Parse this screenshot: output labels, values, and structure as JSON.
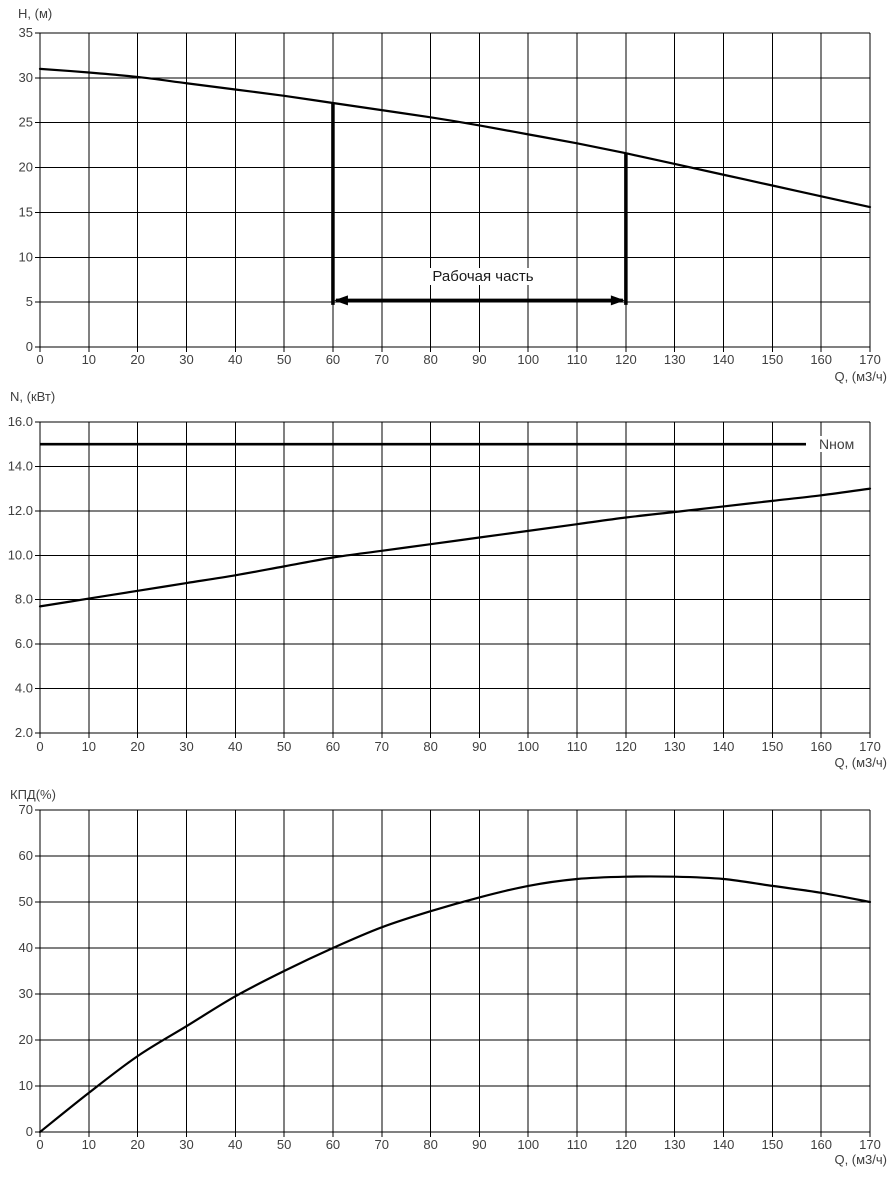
{
  "page": {
    "background": "#ffffff",
    "colors": {
      "curve": "#000000",
      "grid": "#000000",
      "tick_text": "#3f3f3f",
      "annotation": "#000000"
    }
  },
  "chart_data": [
    {
      "id": "head-curve",
      "type": "line",
      "title": "",
      "ylabel": "H, (м)",
      "xlabel": "Q, (м3/ч)",
      "xlim": [
        0,
        170
      ],
      "xtick_step": 10,
      "ylim": [
        0,
        35
      ],
      "ytick_step": 5,
      "y_decimals": 0,
      "grid": true,
      "legend": "none",
      "x": [
        0,
        10,
        20,
        30,
        40,
        50,
        60,
        70,
        80,
        90,
        100,
        110,
        120,
        130,
        140,
        150,
        160,
        170
      ],
      "series": [
        {
          "name": "H",
          "values": [
            31.0,
            30.6,
            30.1,
            29.4,
            28.7,
            28.0,
            27.2,
            26.4,
            25.6,
            24.7,
            23.7,
            22.7,
            21.6,
            20.4,
            19.2,
            18.0,
            16.8,
            15.6
          ]
        }
      ],
      "annotation": {
        "label": "Рабочая часть",
        "x_from": 60,
        "x_to": 120,
        "arrow_y": 5.2,
        "bracket_bottom_y": 4.7
      }
    },
    {
      "id": "power-curve",
      "type": "line",
      "title": "",
      "ylabel": "N, (кВт)",
      "xlabel": "Q, (м3/ч)",
      "xlim": [
        0,
        170
      ],
      "xtick_step": 10,
      "ylim": [
        2,
        16
      ],
      "ytick_step": 2,
      "y_decimals": 1,
      "grid": true,
      "legend": "none",
      "x": [
        0,
        10,
        20,
        30,
        40,
        50,
        60,
        70,
        80,
        90,
        100,
        110,
        120,
        130,
        140,
        150,
        160,
        170
      ],
      "series": [
        {
          "name": "N",
          "values": [
            7.7,
            8.05,
            8.4,
            8.75,
            9.1,
            9.5,
            9.9,
            10.2,
            10.5,
            10.8,
            11.1,
            11.4,
            11.7,
            11.95,
            12.2,
            12.45,
            12.7,
            13.0
          ]
        }
      ],
      "ref_line": {
        "label": "Nном",
        "value": 15.0
      }
    },
    {
      "id": "efficiency-curve",
      "type": "line",
      "title": "",
      "ylabel": "КПД(%)",
      "xlabel": "Q, (м3/ч)",
      "xlim": [
        0,
        170
      ],
      "xtick_step": 10,
      "ylim": [
        0,
        70
      ],
      "ytick_step": 10,
      "y_decimals": 0,
      "grid": true,
      "legend": "none",
      "x": [
        0,
        10,
        20,
        30,
        40,
        50,
        60,
        70,
        80,
        90,
        100,
        110,
        120,
        130,
        140,
        150,
        160,
        170
      ],
      "series": [
        {
          "name": "КПД",
          "values": [
            0,
            8.5,
            16.5,
            23,
            29.5,
            35,
            40,
            44.5,
            48,
            51,
            53.5,
            55,
            55.5,
            55.5,
            55,
            53.5,
            52,
            50
          ]
        }
      ]
    }
  ]
}
